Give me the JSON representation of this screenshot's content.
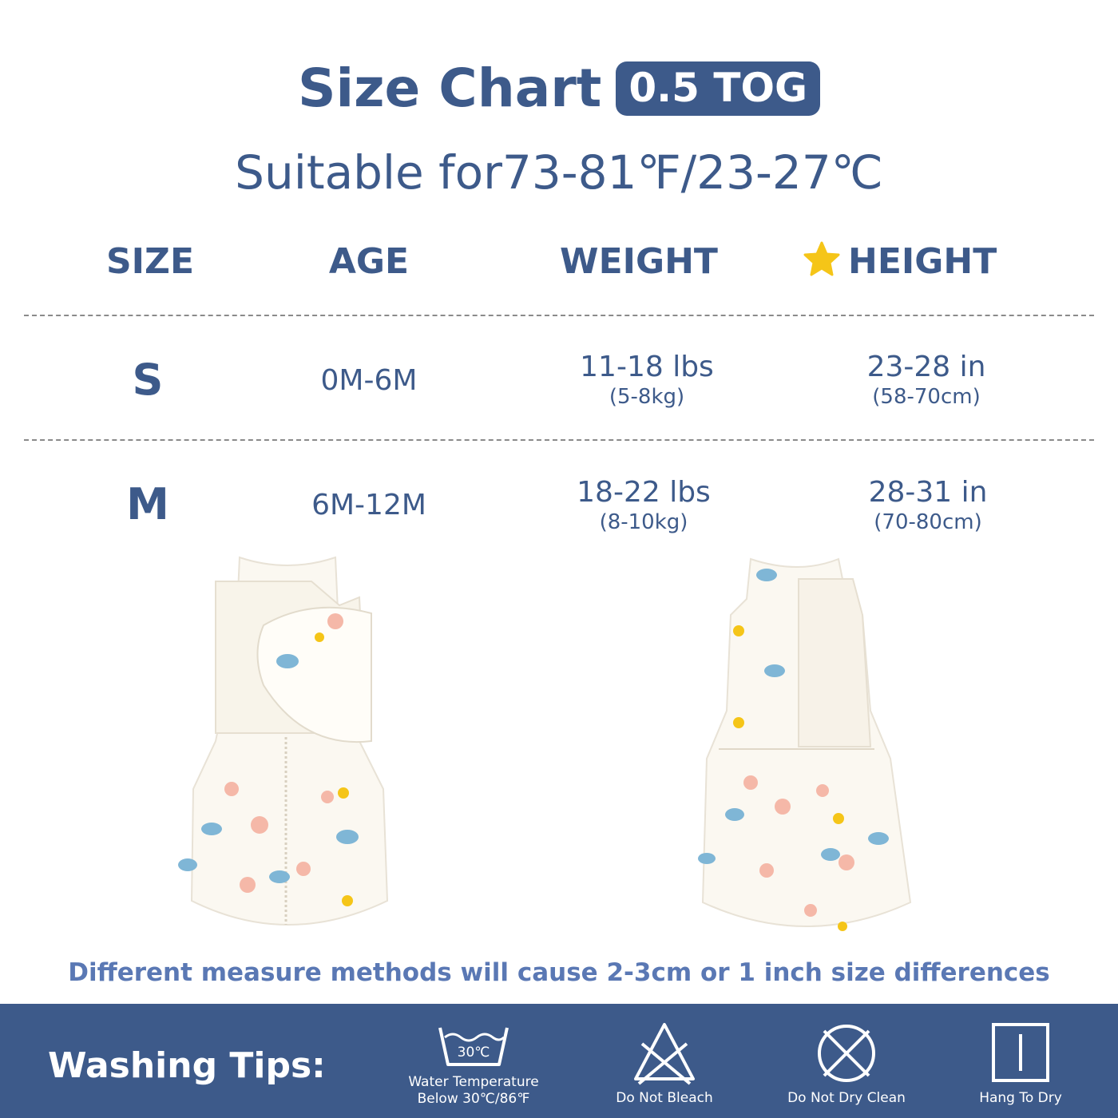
{
  "header": {
    "title": "Size Chart",
    "badge": "0.5 TOG",
    "subtitle": "Suitable for73-81℉/23-27℃"
  },
  "table": {
    "columns": [
      "SIZE",
      "AGE",
      "WEIGHT",
      "HEIGHT"
    ],
    "height_marker_icon": "star-icon",
    "rows": [
      {
        "size": "S",
        "age": "0M-6M",
        "weight": "11-18 lbs",
        "weight_metric": "(5-8kg)",
        "height": "23-28 in",
        "height_metric": "(58-70cm)"
      },
      {
        "size": "M",
        "age": "6M-12M",
        "weight": "18-22 lbs",
        "weight_metric": "(8-10kg)",
        "height": "28-31 in",
        "height_metric": "(70-80cm)"
      }
    ]
  },
  "note": "Different measure methods will cause 2-3cm or 1 inch size differences",
  "washing": {
    "title": "Washing  Tips:",
    "items": [
      {
        "icon": "wash-30-icon",
        "icon_text": "30℃",
        "line1": "Water Temperature",
        "line2": "Below 30℃/86℉"
      },
      {
        "icon": "do-not-bleach-icon",
        "line1": "Do Not Bleach"
      },
      {
        "icon": "do-not-dry-clean-icon",
        "line1": "Do Not Dry Clean"
      },
      {
        "icon": "hang-to-dry-icon",
        "line1": "Hang To Dry"
      }
    ]
  },
  "colors": {
    "primary": "#3d5a8a",
    "note": "#5a78b4",
    "star": "#f5c518",
    "background": "#ffffff"
  }
}
